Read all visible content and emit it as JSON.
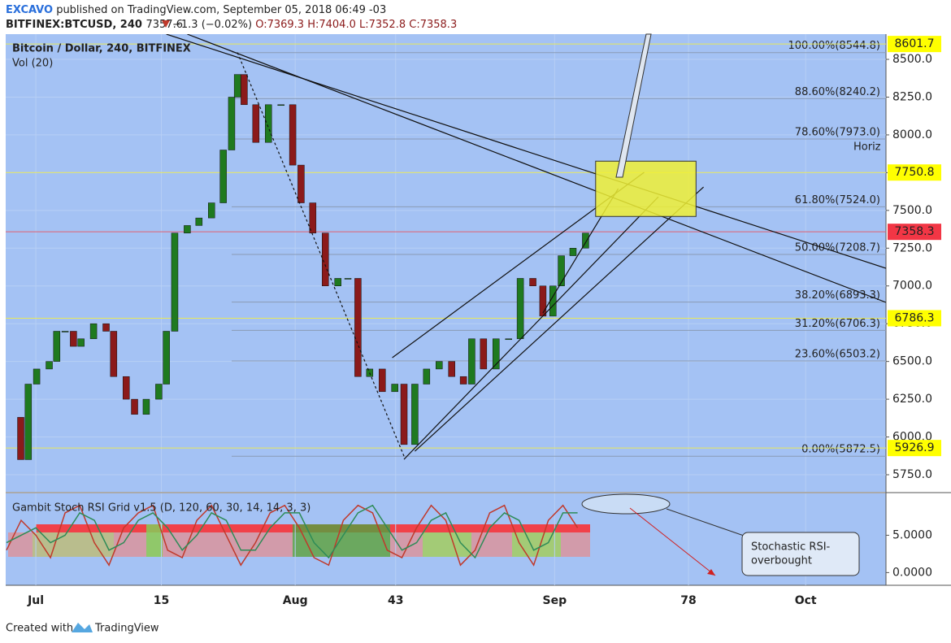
{
  "header": {
    "author": "EXCAVO",
    "published": "published on TradingView.com, September 05, 2018 06:49 -03",
    "symbol": "BITFINEX:BTCUSD, 240",
    "last": "7357.6",
    "change": "−1.3 (−0.02%)",
    "open": "O:7369.3",
    "high": "H:7404.0",
    "low": "L:7352.8",
    "close": "C:7358.3"
  },
  "footer": {
    "created": "Created with",
    "brand": "TradingView"
  },
  "chart_data": [
    {
      "type": "candlestick",
      "title": "Bitcoin / Dollar, 240, BITFINEX",
      "subtitle": "Vol (20)",
      "x": [
        -3.3,
        -1.8,
        -0.9,
        0.1,
        1.6,
        2.5,
        3.5,
        4.5,
        5.4,
        6.9,
        8.4,
        9.3,
        10.8,
        11.8,
        13.2,
        14.7,
        15.6,
        16.6,
        18.1,
        19.5,
        21.0,
        22.4,
        23.4,
        24.1,
        24.9,
        26.3,
        27.8,
        29.3,
        30.7,
        31.7,
        33.1,
        34.6,
        36.1,
        37.3,
        38.5,
        39.9,
        41.4,
        42.9,
        44.0,
        45.3,
        46.7,
        48.2,
        49.7,
        51.1,
        52.1,
        53.5,
        55.0,
        56.5,
        57.9,
        59.4,
        60.6,
        61.8,
        62.8,
        64.2,
        65.7
      ],
      "values": [
        6130,
        5850,
        6350,
        6450,
        6500,
        6700,
        6700,
        6600,
        6650,
        6750,
        6700,
        6400,
        6250,
        6150,
        6250,
        6350,
        6700,
        7350,
        7400,
        7450,
        7550,
        7900,
        8250,
        8400,
        8200,
        7950,
        8200,
        8200,
        7800,
        7550,
        7350,
        7000,
        7050,
        7050,
        6400,
        6450,
        6300,
        6350,
        5950,
        6350,
        6450,
        6500,
        6400,
        6350,
        6650,
        6450,
        6650,
        6650,
        7050,
        7000,
        6800,
        7000,
        7200,
        7250,
        7350
      ],
      "up_color": "#1f7a1f",
      "down_color": "#8b1a1a",
      "xlim": [
        -3.6,
        101.6
      ],
      "xticks": [
        {
          "value": 0,
          "label": "Jul"
        },
        15,
        {
          "value": 31,
          "label": "Aug"
        },
        43,
        {
          "value": 62,
          "label": "Sep"
        },
        78,
        {
          "value": 92,
          "label": "Oct"
        }
      ],
      "ylim": [
        5637,
        8667
      ],
      "yticks": [
        {
          "value": 5750,
          "label": "5750.0"
        },
        {
          "value": 6000,
          "label": "6000.0"
        },
        {
          "value": 6250,
          "label": "6250.0"
        },
        {
          "value": 6500,
          "label": "6500.0"
        },
        {
          "value": 6750,
          "label": "6750.0"
        },
        {
          "value": 7000,
          "label": "7000.0"
        },
        {
          "value": 7250,
          "label": "7250.0"
        },
        {
          "value": 7500,
          "label": "7500.0"
        },
        {
          "value": 7750,
          "label": "7750.0"
        },
        {
          "value": 8000,
          "label": "8000.0"
        },
        {
          "value": 8250,
          "label": "8250.0"
        },
        {
          "value": 8500,
          "label": "8500.0"
        }
      ],
      "grid": true,
      "fib_levels": [
        {
          "value": 8544.8,
          "label": "100.00%(8544.8)"
        },
        {
          "value": 8240.2,
          "label": "88.60%(8240.2)"
        },
        {
          "value": 7973.0,
          "label": "78.60%(7973.0)"
        },
        {
          "value": 7524.0,
          "label": "61.80%(7524.0)"
        },
        {
          "value": 7208.7,
          "label": "50.00%(7208.7)"
        },
        {
          "value": 6893.3,
          "label": "38.20%(6893.3)"
        },
        {
          "value": 6706.3,
          "label": "31.20%(6706.3)"
        },
        {
          "value": 6503.2,
          "label": "23.60%(6503.2)"
        },
        {
          "value": 5872.5,
          "label": "0.00%(5872.5)"
        }
      ],
      "price_lines": [
        {
          "value": 8601.7,
          "color": "#ffff00"
        },
        {
          "value": 7750.8,
          "color": "#ffff00"
        },
        {
          "value": 7358.3,
          "color": "#f23645"
        },
        {
          "value": 6786.3,
          "color": "#ffff00"
        },
        {
          "value": 5926.9,
          "color": "#ffff00"
        }
      ],
      "trendlines": [
        {
          "from": [
            15.6,
            8667
          ],
          "to": [
            101.6,
            7117
          ]
        },
        {
          "from": [
            18.1,
            8667
          ],
          "to": [
            101.6,
            6891
          ]
        },
        {
          "from": [
            42.6,
            6525
          ],
          "to": [
            72.7,
            7752
          ]
        },
        {
          "from": [
            44.0,
            5852
          ],
          "to": [
            74.4,
            7590
          ]
        },
        {
          "from": [
            45.3,
            5906
          ],
          "to": [
            79.8,
            7655
          ]
        },
        {
          "from": [
            60.6,
            6821
          ],
          "to": [
            69.6,
            7644
          ]
        },
        {
          "from": [
            24.1,
            8545
          ],
          "to": [
            44.0,
            5873
          ],
          "dash": true
        }
      ],
      "box": {
        "x": [
          66.9,
          78.9
        ],
        "y": [
          7460,
          7826
        ],
        "color": "#f0f035"
      },
      "annotation": "Horiz"
    },
    {
      "type": "line",
      "title": "Gambit Stoch RSI Grid v1.5 (D, 120, 60, 30, 14, 14, 3, 3)",
      "x": [
        -3.5,
        -1.75,
        0,
        1.75,
        3.5,
        5.25,
        7,
        8.75,
        10.5,
        12.25,
        14,
        15.75,
        17.5,
        19.25,
        21,
        22.75,
        24.5,
        26.25,
        28,
        29.75,
        31.5,
        33.25,
        35,
        36.75,
        38.5,
        40.25,
        42,
        43.75,
        45.5,
        47.25,
        49,
        50.75,
        52.5,
        54.25,
        56,
        57.75,
        59.5,
        61.25,
        63,
        64.75
      ],
      "series": [
        {
          "color": "#c0392b",
          "values": [
            3,
            7,
            5,
            2,
            8,
            9,
            4,
            1,
            6,
            8,
            9,
            3,
            2,
            7,
            9,
            5,
            1,
            4,
            8,
            9,
            6,
            2,
            1,
            7,
            9,
            8,
            3,
            2,
            6,
            9,
            7,
            1,
            3,
            8,
            9,
            4,
            1,
            7,
            9,
            6
          ]
        },
        {
          "color": "#2e8b57",
          "values": [
            4,
            5,
            6,
            4,
            5,
            8,
            7,
            3,
            4,
            7,
            8,
            6,
            3,
            5,
            8,
            7,
            3,
            3,
            6,
            8,
            8,
            4,
            2,
            5,
            8,
            9,
            6,
            3,
            4,
            7,
            8,
            4,
            2,
            6,
            8,
            7,
            3,
            4,
            8,
            8
          ]
        }
      ],
      "xlim": [
        -3.6,
        101.6
      ],
      "ylim": [
        -1.7,
        10.6
      ],
      "yticks": [
        {
          "value": 0,
          "label": "0.0000"
        },
        {
          "value": 5,
          "label": "5.0000"
        }
      ],
      "annotation": [
        "Stochastic RSI-",
        "overbought"
      ]
    }
  ]
}
